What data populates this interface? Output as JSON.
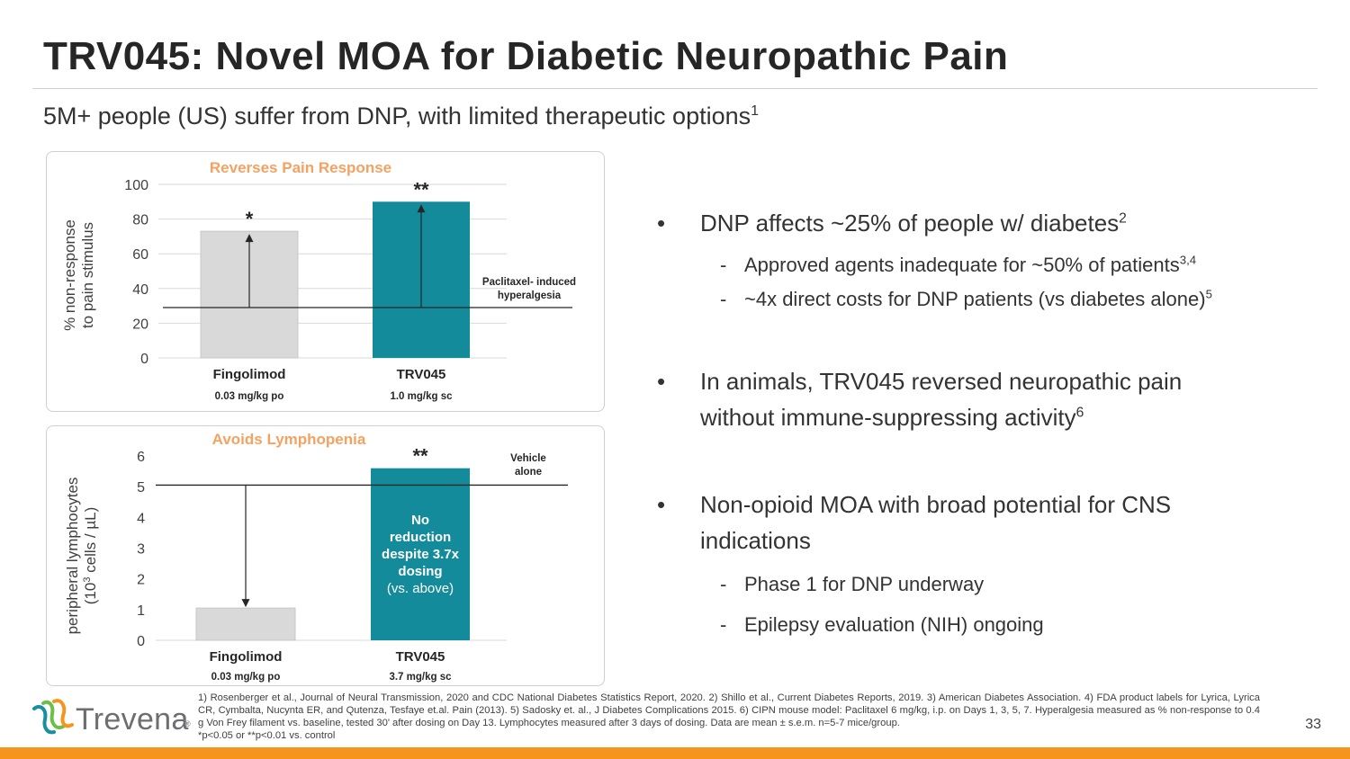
{
  "slide": {
    "title": "TRV045: Novel MOA for Diabetic Neuropathic Pain",
    "subtitle": "5M+ people (US) suffer from DNP, with limited therapeutic options",
    "subtitle_ref": "1",
    "page_number": "33"
  },
  "colors": {
    "accent_orange": "#F7941D",
    "teal": "#148B9B",
    "gray_bar": "#D9D9D9",
    "chart_title": "#F4A261"
  },
  "chart_data": [
    {
      "type": "bar",
      "title": "Reverses Pain Response",
      "ylabel_line1": "% non-response",
      "ylabel_line2": "to pain stimulus",
      "categories": [
        "Fingolimod",
        "TRV045"
      ],
      "doses": [
        "0.03 mg/kg po",
        "1.0 mg/kg sc"
      ],
      "values": [
        73,
        90
      ],
      "significance": [
        "*",
        "**"
      ],
      "ylim": [
        0,
        100
      ],
      "yticks": [
        "0",
        "20",
        "40",
        "60",
        "80",
        "100"
      ],
      "baseline_value": 29,
      "baseline_label_line1": "Paclitaxel- induced",
      "baseline_label_line2": "hyperalgesia",
      "arrow_direction": "up",
      "grid": true
    },
    {
      "type": "bar",
      "title": "Avoids Lymphopenia",
      "ylabel_line1": "peripheral lymphocytes",
      "ylabel_line2_pre": "(10",
      "ylabel_line2_sup": "3",
      "ylabel_line2_post": " cells / µL)",
      "categories": [
        "Fingolimod",
        "TRV045"
      ],
      "doses": [
        "0.03 mg/kg po",
        "3.7 mg/kg sc"
      ],
      "values": [
        1.05,
        5.6
      ],
      "significance": [
        "",
        "**"
      ],
      "ylim": [
        0,
        6
      ],
      "yticks": [
        "0",
        "1",
        "2",
        "3",
        "4",
        "5",
        "6"
      ],
      "baseline_value": 5.05,
      "baseline_label_line1": "Vehicle",
      "baseline_label_line2": "alone",
      "arrow_direction": "down",
      "bar_annotation": [
        "No",
        "reduction",
        "despite 3.7x",
        "dosing",
        "(vs. above)"
      ],
      "grid": false
    }
  ],
  "bullets": {
    "b1_text": "DNP affects ~25% of people w/ diabetes",
    "b1_ref": "2",
    "b1_sub1_text": "Approved agents inadequate for ~50% of patients",
    "b1_sub1_ref": "3,4",
    "b1_sub2_text": "~4x direct costs for DNP patients (vs diabetes alone)",
    "b1_sub2_ref": "5",
    "b2_line1": "In animals, TRV045 reversed neuropathic pain",
    "b2_line2": "without immune-suppressing activity",
    "b2_ref": "6",
    "b3_line1": "Non-opioid MOA with broad potential for CNS",
    "b3_line2": "indications",
    "b3_sub1_text": "Phase 1 for DNP underway",
    "b3_sub2_text": "Epilepsy evaluation (NIH) ongoing",
    "bullet_char": "•",
    "dash_char": "-"
  },
  "footnotes": {
    "text": "1) Rosenberger et al., Journal of Neural Transmission, 2020 and CDC National Diabetes Statistics Report, 2020. 2) Shillo et al., Current Diabetes Reports, 2019. 3) American Diabetes Association. 4) FDA product labels for Lyrica, Lyrica CR, Cymbalta, Nucynta ER, and Qutenza, Tesfaye et.al. Pain (2013). 5) Sadosky et. al., J Diabetes Complications 2015. 6) CIPN mouse model: Paclitaxel 6 mg/kg, i.p. on Days 1, 3, 5, 7. Hyperalgesia measured as % non-response to 0.4 g Von Frey filament vs. baseline, tested 30' after dosing on Day 13. Lymphocytes measured after 3 days of dosing. Data are mean ± s.e.m. n=5-7 mice/group.",
    "sig_note": "*p<0.05 or **p<0.01 vs. control"
  },
  "logo": {
    "name": "Trevena",
    "reg": "®",
    "icon": "trevena-logo-icon"
  }
}
